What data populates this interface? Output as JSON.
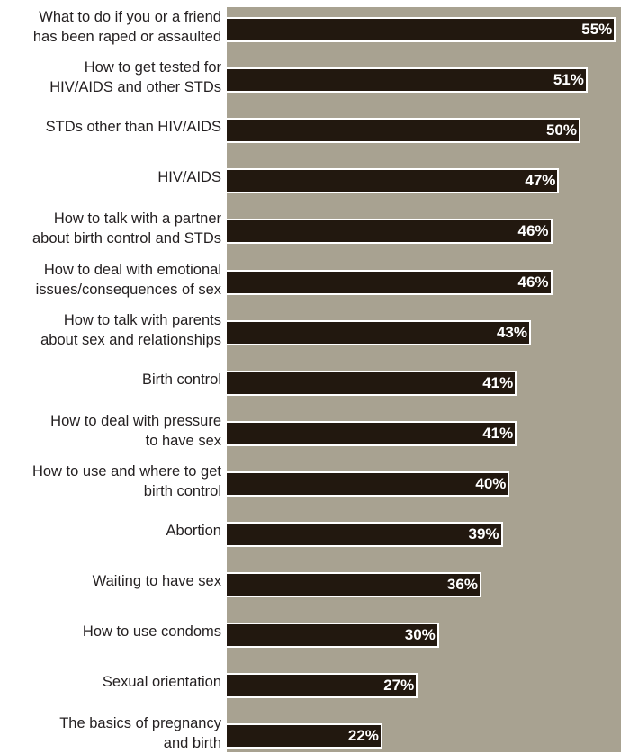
{
  "chart_data": {
    "type": "bar",
    "orientation": "horizontal",
    "categories": [
      "What to do if you or a friend\nhas been raped or assaulted",
      "How to get tested for\nHIV/AIDS and other STDs",
      "STDs other than HIV/AIDS",
      "HIV/AIDS",
      "How to talk with a partner\nabout birth control and STDs",
      "How to deal with emotional\nissues/consequences of sex",
      "How to talk with parents\nabout sex and relationships",
      "Birth control",
      "How to deal with pressure\nto have sex",
      "How to use and where to get\nbirth control",
      "Abortion",
      "Waiting to have sex",
      "How to use condoms",
      "Sexual orientation",
      "The basics of pregnancy\nand birth"
    ],
    "values": [
      55,
      51,
      50,
      47,
      46,
      46,
      43,
      41,
      41,
      40,
      39,
      36,
      30,
      27,
      22
    ],
    "value_labels": [
      "55%",
      "51%",
      "50%",
      "47%",
      "46%",
      "46%",
      "43%",
      "41%",
      "41%",
      "40%",
      "39%",
      "36%",
      "30%",
      "27%",
      "22%"
    ],
    "title": "",
    "xlabel": "",
    "ylabel": "",
    "grid": false,
    "legend": "none",
    "colors": {
      "bar": "#22180f",
      "plot_background": "#a8a291",
      "value_text": "#ffffff",
      "label_text": "#231f20"
    }
  }
}
